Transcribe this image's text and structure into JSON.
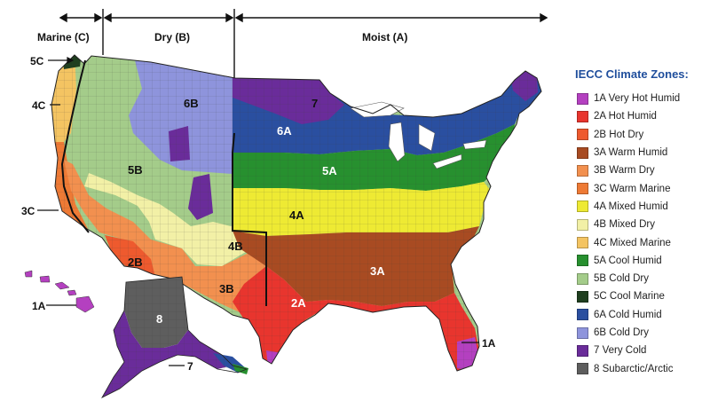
{
  "moisture_regimes": {
    "marine": "Marine (C)",
    "dry": "Dry (B)",
    "moist": "Moist (A)"
  },
  "legend": {
    "title": "IECC Climate Zones:",
    "zones": [
      {
        "code": "1A",
        "label": "1A Very Hot Humid",
        "color": "#b440c0"
      },
      {
        "code": "2A",
        "label": "2A Hot Humid",
        "color": "#e8352e"
      },
      {
        "code": "2B",
        "label": "2B Hot Dry",
        "color": "#ee5a2e"
      },
      {
        "code": "3A",
        "label": "3A Warm Humid",
        "color": "#a84b22"
      },
      {
        "code": "3B",
        "label": "3B Warm Dry",
        "color": "#f2904f"
      },
      {
        "code": "3C",
        "label": "3C Warm Marine",
        "color": "#ee7a35"
      },
      {
        "code": "4A",
        "label": "4A Mixed Humid",
        "color": "#eeea33"
      },
      {
        "code": "4B",
        "label": "4B Mixed Dry",
        "color": "#f2f0a6"
      },
      {
        "code": "4C",
        "label": "4C Mixed Marine",
        "color": "#f4c462"
      },
      {
        "code": "5A",
        "label": "5A Cool Humid",
        "color": "#27902f"
      },
      {
        "code": "5B",
        "label": "5B Cold Dry",
        "color": "#a4cc8a"
      },
      {
        "code": "5C",
        "label": "5C Cool Marine",
        "color": "#1f3f1f"
      },
      {
        "code": "6A",
        "label": "6A Cold Humid",
        "color": "#2a4fa0"
      },
      {
        "code": "6B",
        "label": "6B Cold Dry",
        "color": "#8e94dc"
      },
      {
        "code": "7",
        "label": "7 Very Cold",
        "color": "#6a2c9a"
      },
      {
        "code": "8",
        "label": "8 Subarctic/Arctic",
        "color": "#5e5e5e"
      }
    ]
  },
  "map_labels": {
    "z6B": "6B",
    "z7": "7",
    "z6A": "6A",
    "z5A": "5A",
    "z5B": "5B",
    "z4A": "4A",
    "z4B": "4B",
    "z3A": "3A",
    "z3B": "3B",
    "z2A": "2A",
    "z2B": "2B",
    "z8": "8"
  },
  "callouts": {
    "c5C": "5C",
    "c4C": "4C",
    "c3C": "3C",
    "c1A_hawaii": "1A",
    "c1A_florida": "1A",
    "c7_alaska": "7"
  }
}
